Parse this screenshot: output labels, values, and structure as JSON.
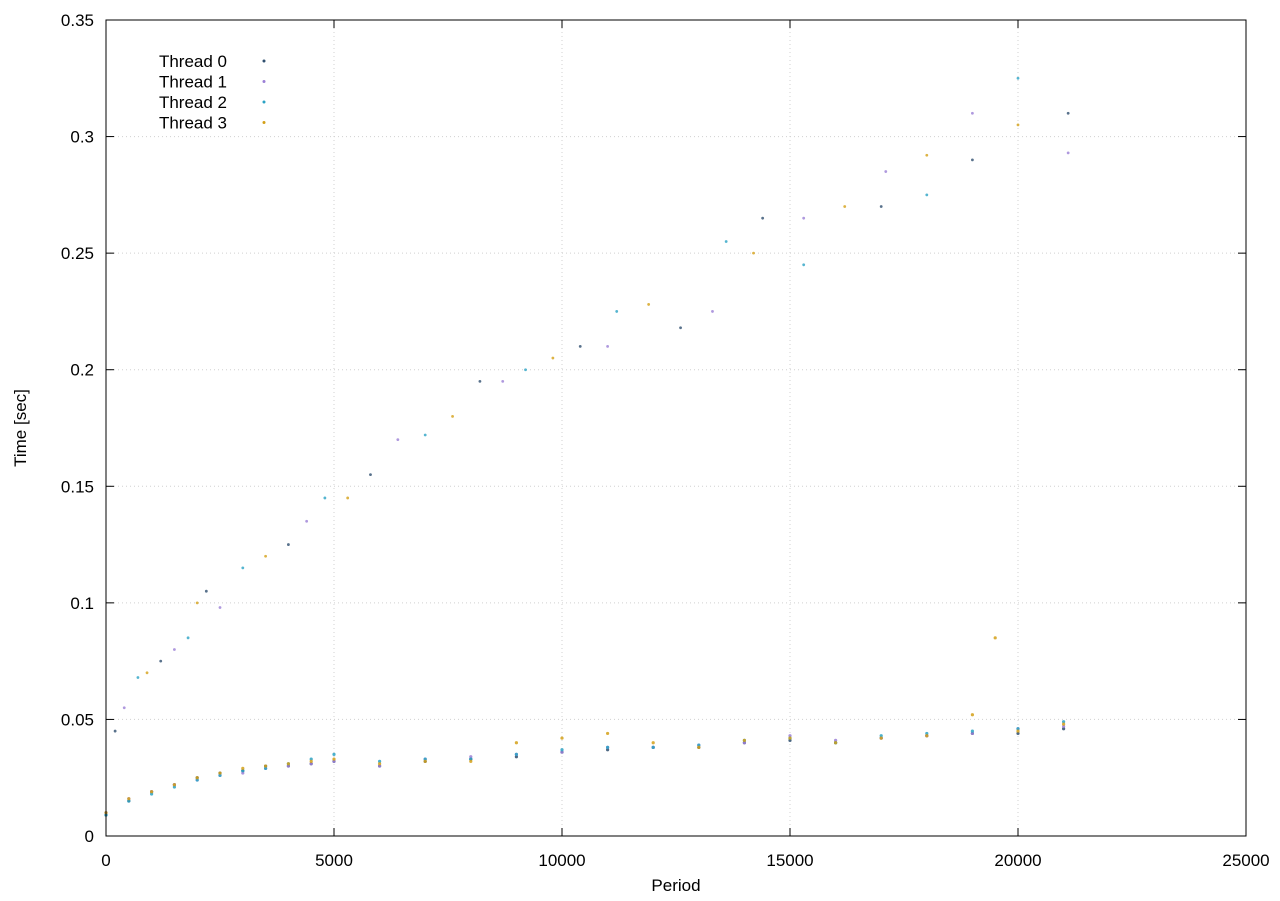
{
  "chart_data": {
    "type": "scatter",
    "title": "",
    "xlabel": "Period",
    "ylabel": "Time [sec]",
    "xlim": [
      0,
      25000
    ],
    "ylim": [
      0,
      0.35
    ],
    "x_ticks": [
      0,
      5000,
      10000,
      15000,
      20000,
      25000
    ],
    "x_tick_labels": [
      "0",
      "5000",
      "10000",
      "15000",
      "20000",
      "25000"
    ],
    "y_ticks": [
      0,
      0.05,
      0.1,
      0.15,
      0.2,
      0.25,
      0.3,
      0.35
    ],
    "y_tick_labels": [
      "0",
      "0.05",
      "0.1",
      "0.15",
      "0.2",
      "0.25",
      "0.3",
      "0.35"
    ],
    "grid": true,
    "legend_position": "top-left",
    "series": [
      {
        "name": "Thread 0",
        "color": "#2f4f6f",
        "values": [
          [
            0,
            0.009
          ],
          [
            500,
            0.015
          ],
          [
            1000,
            0.019
          ],
          [
            1500,
            0.022
          ],
          [
            2000,
            0.025
          ],
          [
            2500,
            0.027
          ],
          [
            3000,
            0.028
          ],
          [
            3500,
            0.03
          ],
          [
            4000,
            0.03
          ],
          [
            4500,
            0.031
          ],
          [
            5000,
            0.032
          ],
          [
            6000,
            0.03
          ],
          [
            7000,
            0.032
          ],
          [
            8000,
            0.033
          ],
          [
            9000,
            0.034
          ],
          [
            10000,
            0.036
          ],
          [
            11000,
            0.037
          ],
          [
            12000,
            0.038
          ],
          [
            13000,
            0.038
          ],
          [
            14000,
            0.04
          ],
          [
            15000,
            0.041
          ],
          [
            16000,
            0.04
          ],
          [
            17000,
            0.042
          ],
          [
            18000,
            0.043
          ],
          [
            19000,
            0.044
          ],
          [
            20000,
            0.044
          ],
          [
            21000,
            0.046
          ]
        ]
      },
      {
        "name": "Thread 1",
        "color": "#9b7fd6",
        "values": [
          [
            0,
            0.01
          ],
          [
            500,
            0.016
          ],
          [
            1000,
            0.019
          ],
          [
            1500,
            0.022
          ],
          [
            2000,
            0.024
          ],
          [
            2500,
            0.026
          ],
          [
            3000,
            0.027
          ],
          [
            3500,
            0.029
          ],
          [
            4000,
            0.03
          ],
          [
            4500,
            0.031
          ],
          [
            5000,
            0.032
          ],
          [
            6000,
            0.03
          ],
          [
            7000,
            0.033
          ],
          [
            8000,
            0.034
          ],
          [
            9000,
            0.035
          ],
          [
            10000,
            0.036
          ],
          [
            11000,
            0.038
          ],
          [
            12000,
            0.038
          ],
          [
            13000,
            0.039
          ],
          [
            14000,
            0.04
          ],
          [
            15000,
            0.043
          ],
          [
            16000,
            0.041
          ],
          [
            17000,
            0.042
          ],
          [
            18000,
            0.043
          ],
          [
            19000,
            0.044
          ],
          [
            20000,
            0.046
          ],
          [
            21000,
            0.047
          ]
        ]
      },
      {
        "name": "Thread 2",
        "color": "#2aa2c4",
        "values": [
          [
            0,
            0.009
          ],
          [
            500,
            0.015
          ],
          [
            1000,
            0.018
          ],
          [
            1500,
            0.021
          ],
          [
            2000,
            0.024
          ],
          [
            2500,
            0.026
          ],
          [
            3000,
            0.028
          ],
          [
            3500,
            0.029
          ],
          [
            4000,
            0.031
          ],
          [
            4500,
            0.033
          ],
          [
            5000,
            0.035
          ],
          [
            6000,
            0.032
          ],
          [
            7000,
            0.033
          ],
          [
            8000,
            0.033
          ],
          [
            9000,
            0.035
          ],
          [
            10000,
            0.037
          ],
          [
            11000,
            0.038
          ],
          [
            12000,
            0.038
          ],
          [
            13000,
            0.039
          ],
          [
            14000,
            0.041
          ],
          [
            15000,
            0.042
          ],
          [
            16000,
            0.04
          ],
          [
            17000,
            0.043
          ],
          [
            18000,
            0.044
          ],
          [
            19000,
            0.045
          ],
          [
            20000,
            0.046
          ],
          [
            21000,
            0.049
          ]
        ]
      },
      {
        "name": "Thread 3",
        "color": "#d4a017",
        "values": [
          [
            0,
            0.01
          ],
          [
            500,
            0.016
          ],
          [
            1000,
            0.019
          ],
          [
            1500,
            0.022
          ],
          [
            2000,
            0.025
          ],
          [
            2500,
            0.027
          ],
          [
            3000,
            0.029
          ],
          [
            3500,
            0.03
          ],
          [
            4000,
            0.031
          ],
          [
            4500,
            0.032
          ],
          [
            5000,
            0.033
          ],
          [
            6000,
            0.031
          ],
          [
            7000,
            0.032
          ],
          [
            8000,
            0.032
          ],
          [
            9000,
            0.04
          ],
          [
            10000,
            0.042
          ],
          [
            11000,
            0.044
          ],
          [
            12000,
            0.04
          ],
          [
            13000,
            0.038
          ],
          [
            14000,
            0.041
          ],
          [
            15000,
            0.042
          ],
          [
            16000,
            0.04
          ],
          [
            17000,
            0.042
          ],
          [
            18000,
            0.043
          ],
          [
            19000,
            0.052
          ],
          [
            19500,
            0.085
          ],
          [
            20000,
            0.045
          ],
          [
            21000,
            0.048
          ]
        ]
      }
    ],
    "outliers": [
      [
        200,
        0.045
      ],
      [
        400,
        0.055
      ],
      [
        700,
        0.068
      ],
      [
        900,
        0.07
      ],
      [
        1200,
        0.075
      ],
      [
        1500,
        0.08
      ],
      [
        1800,
        0.085
      ],
      [
        2000,
        0.1
      ],
      [
        2200,
        0.105
      ],
      [
        2500,
        0.098
      ],
      [
        3000,
        0.115
      ],
      [
        3500,
        0.12
      ],
      [
        4000,
        0.125
      ],
      [
        4400,
        0.135
      ],
      [
        4800,
        0.145
      ],
      [
        5300,
        0.145
      ],
      [
        5800,
        0.155
      ],
      [
        6400,
        0.17
      ],
      [
        7000,
        0.172
      ],
      [
        7600,
        0.18
      ],
      [
        8200,
        0.195
      ],
      [
        8700,
        0.195
      ],
      [
        9200,
        0.2
      ],
      [
        9800,
        0.205
      ],
      [
        10400,
        0.21
      ],
      [
        11000,
        0.21
      ],
      [
        11200,
        0.225
      ],
      [
        11900,
        0.228
      ],
      [
        12600,
        0.218
      ],
      [
        13300,
        0.225
      ],
      [
        13600,
        0.255
      ],
      [
        14200,
        0.25
      ],
      [
        14400,
        0.265
      ],
      [
        15300,
        0.265
      ],
      [
        15300,
        0.245
      ],
      [
        16200,
        0.27
      ],
      [
        17000,
        0.27
      ],
      [
        17100,
        0.285
      ],
      [
        18000,
        0.275
      ],
      [
        18000,
        0.292
      ],
      [
        19000,
        0.29
      ],
      [
        19000,
        0.31
      ],
      [
        20000,
        0.325
      ],
      [
        20000,
        0.305
      ],
      [
        21100,
        0.31
      ],
      [
        21100,
        0.293
      ]
    ]
  }
}
